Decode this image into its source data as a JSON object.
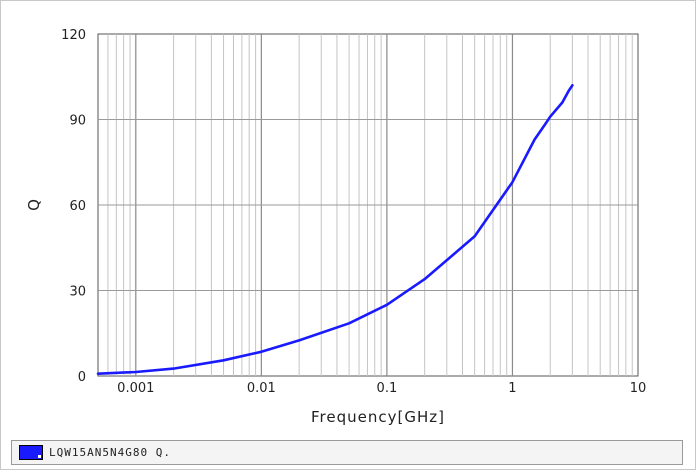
{
  "chart_data": {
    "type": "line",
    "xlabel": "Frequency[GHz]",
    "ylabel": "Q",
    "x_scale": "log",
    "xlim": [
      0.0005,
      10
    ],
    "ylim": [
      0,
      120
    ],
    "x_ticks": [
      0.001,
      0.01,
      0.1,
      1,
      10
    ],
    "x_tick_labels": [
      "0.001",
      "0.01",
      "0.1",
      "1",
      "10"
    ],
    "y_ticks": [
      0,
      30,
      60,
      90,
      120
    ],
    "y_tick_labels": [
      "0",
      "30",
      "60",
      "90",
      "120"
    ],
    "grid": true,
    "legend_position": "bottom",
    "series": [
      {
        "name": "LQW15AN5N4G80 Q.",
        "color": "#1a1aff",
        "x": [
          0.0005,
          0.001,
          0.002,
          0.005,
          0.01,
          0.02,
          0.05,
          0.1,
          0.2,
          0.5,
          1,
          1.5,
          1.8,
          2,
          2.5,
          2.8,
          3
        ],
        "y": [
          0.8,
          1.4,
          2.6,
          5.5,
          8.5,
          12.5,
          18.5,
          25,
          34,
          49,
          68,
          83,
          88,
          91,
          96,
          100,
          102
        ]
      }
    ]
  }
}
